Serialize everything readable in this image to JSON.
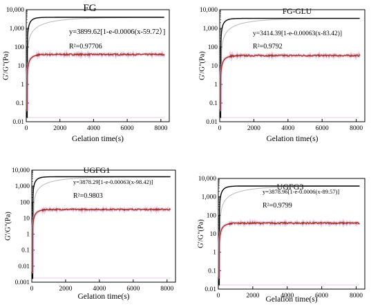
{
  "chart_data": [
    {
      "type": "line",
      "title": "FG",
      "xlabel": "Gelation time(s)",
      "ylabel": "G'/G\"(Pa)",
      "xlim": [
        0,
        8500
      ],
      "ylim": [
        0.01,
        10000
      ],
      "yscale": "log",
      "x_ticks": [
        0,
        2000,
        4000,
        6000,
        8000
      ],
      "x_tick_labels": [
        "0",
        "2000",
        "4000",
        "6000",
        "8000"
      ],
      "y_ticks": [
        0.01,
        0.1,
        1,
        10,
        100,
        1000,
        10000
      ],
      "y_tick_labels": [
        "0.01",
        "0.1",
        "1",
        "10",
        "100",
        "1,000",
        "10,000"
      ],
      "equation": "y=3899.62[1-e-0.0006(x-59.72）]",
      "r2": "R²=0.97706",
      "fit": {
        "a": 3899.62,
        "k": 0.0006,
        "x0": 59.72
      },
      "series": [
        {
          "role": "G'",
          "color": "#000000",
          "plateau": 3899.62
        },
        {
          "role": "G''",
          "color": "#b22222",
          "plateau": 40
        }
      ]
    },
    {
      "type": "line",
      "title": "FG-GLU",
      "xlabel": "Gelation time(s)",
      "ylabel": "G'/G\"(Pa)",
      "xlim": [
        0,
        8500
      ],
      "ylim": [
        0.01,
        10000
      ],
      "yscale": "log",
      "x_ticks": [
        0,
        2000,
        4000,
        6000,
        8000
      ],
      "x_tick_labels": [
        "0",
        "2000",
        "4000",
        "6000",
        "8000"
      ],
      "y_ticks": [
        0.01,
        0.1,
        1,
        10,
        100,
        1000,
        10000
      ],
      "y_tick_labels": [
        "0.01",
        "0.1",
        "1",
        "10",
        "100",
        "1,000",
        "10,000"
      ],
      "equation": "y=3414.39[1-e-0.00063(x-83.42)]",
      "r2": "R²=0.9792",
      "fit": {
        "a": 3414.39,
        "k": 0.00063,
        "x0": 83.42
      },
      "series": [
        {
          "role": "G'",
          "color": "#000000",
          "plateau": 3414.39
        },
        {
          "role": "G''",
          "color": "#b22222",
          "plateau": 35
        }
      ]
    },
    {
      "type": "line",
      "title": "UGFG1",
      "xlabel": "Gelation time(s)",
      "ylabel": "G'/G\"(Pa)",
      "xlim": [
        0,
        8500
      ],
      "ylim": [
        0.001,
        10000
      ],
      "yscale": "log",
      "x_ticks": [
        0,
        2000,
        4000,
        6000,
        8000
      ],
      "x_tick_labels": [
        "0",
        "2000",
        "4000",
        "6000",
        "8000"
      ],
      "y_ticks": [
        0.001,
        0.01,
        0.1,
        1,
        10,
        100,
        1000,
        10000
      ],
      "y_tick_labels": [
        "0.001",
        "0.01",
        "0.1",
        "1",
        "10",
        "100",
        "1,000",
        "10,000"
      ],
      "equation": "y=3878.29[1-e-0.00063(x-98.42)]",
      "r2": "R²=0.9803",
      "fit": {
        "a": 3878.29,
        "k": 0.00063,
        "x0": 98.42
      },
      "series": [
        {
          "role": "G'",
          "color": "#000000",
          "plateau": 3878.29
        },
        {
          "role": "G''",
          "color": "#b22222",
          "plateau": 35
        }
      ]
    },
    {
      "type": "line",
      "title": "UGFG3",
      "xlabel": "Gelation time(s)",
      "ylabel": "G'/G\"(Pa)",
      "xlim": [
        0,
        8500
      ],
      "ylim": [
        0.01,
        10000
      ],
      "yscale": "log",
      "x_ticks": [
        0,
        2000,
        4000,
        6000,
        8000
      ],
      "x_tick_labels": [
        "0",
        "2000",
        "4000",
        "6000",
        "8000"
      ],
      "y_ticks": [
        0.01,
        0.1,
        1,
        10,
        100,
        1000,
        10000
      ],
      "y_tick_labels": [
        "0.01",
        "0.1",
        "1",
        "10",
        "100",
        "1,000",
        "10,000"
      ],
      "equation": "y=3878.96[1-e-0.0006(x-89.57)]",
      "r2": "R²=0.9799",
      "fit": {
        "a": 3878.96,
        "k": 0.0006,
        "x0": 89.57
      },
      "series": [
        {
          "role": "G'",
          "color": "#000000",
          "plateau": 3878.96
        },
        {
          "role": "G''",
          "color": "#b22222",
          "plateau": 38
        }
      ]
    }
  ]
}
